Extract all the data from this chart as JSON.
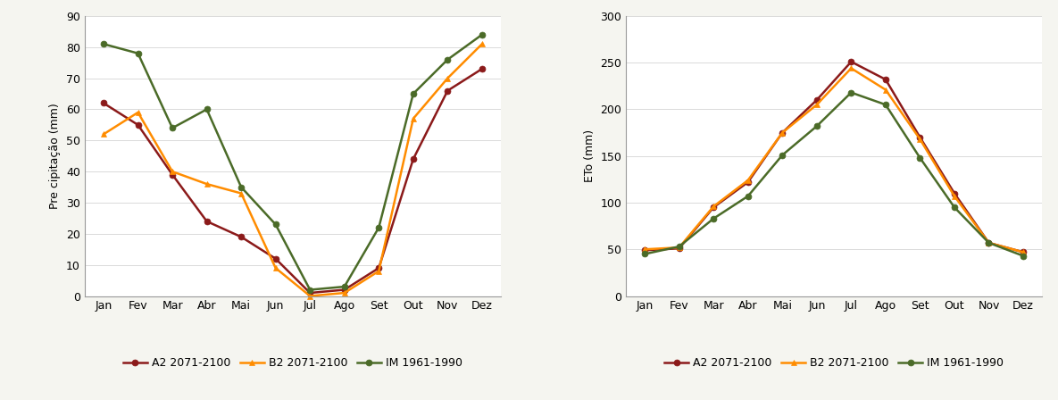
{
  "months": [
    "Jan",
    "Fev",
    "Mar",
    "Abr",
    "Mai",
    "Jun",
    "Jul",
    "Ago",
    "Set",
    "Out",
    "Nov",
    "Dez"
  ],
  "precip": {
    "A2": [
      62,
      55,
      39,
      24,
      19,
      12,
      1,
      2,
      9,
      44,
      66,
      73
    ],
    "B2": [
      52,
      59,
      40,
      36,
      33,
      9,
      0,
      1,
      8,
      57,
      70,
      81
    ],
    "IM": [
      81,
      78,
      54,
      60,
      35,
      23,
      2,
      3,
      22,
      65,
      76,
      84
    ]
  },
  "eto": {
    "A2": [
      49,
      51,
      95,
      122,
      175,
      210,
      251,
      232,
      170,
      110,
      57,
      47
    ],
    "B2": [
      50,
      52,
      96,
      124,
      175,
      205,
      244,
      221,
      168,
      107,
      57,
      47
    ],
    "IM": [
      45,
      53,
      83,
      107,
      151,
      182,
      218,
      205,
      148,
      95,
      57,
      43
    ]
  },
  "colors": {
    "A2": "#8B1A1A",
    "B2": "#FF8C00",
    "IM": "#4B6B28"
  },
  "precip_ylabel": "Pre cipitação (mm)",
  "eto_ylabel": "ETo (mm)",
  "precip_ylim": [
    0,
    90
  ],
  "eto_ylim": [
    0,
    300
  ],
  "precip_yticks": [
    0,
    10,
    20,
    30,
    40,
    50,
    60,
    70,
    80,
    90
  ],
  "eto_yticks": [
    0,
    50,
    100,
    150,
    200,
    250,
    300
  ],
  "legend_labels": [
    "A2 2071-2100",
    "B2 2071-2100",
    "IM 1961-1990"
  ],
  "bg_color": "#F5F5F0",
  "plot_bg": "#FFFFFF"
}
